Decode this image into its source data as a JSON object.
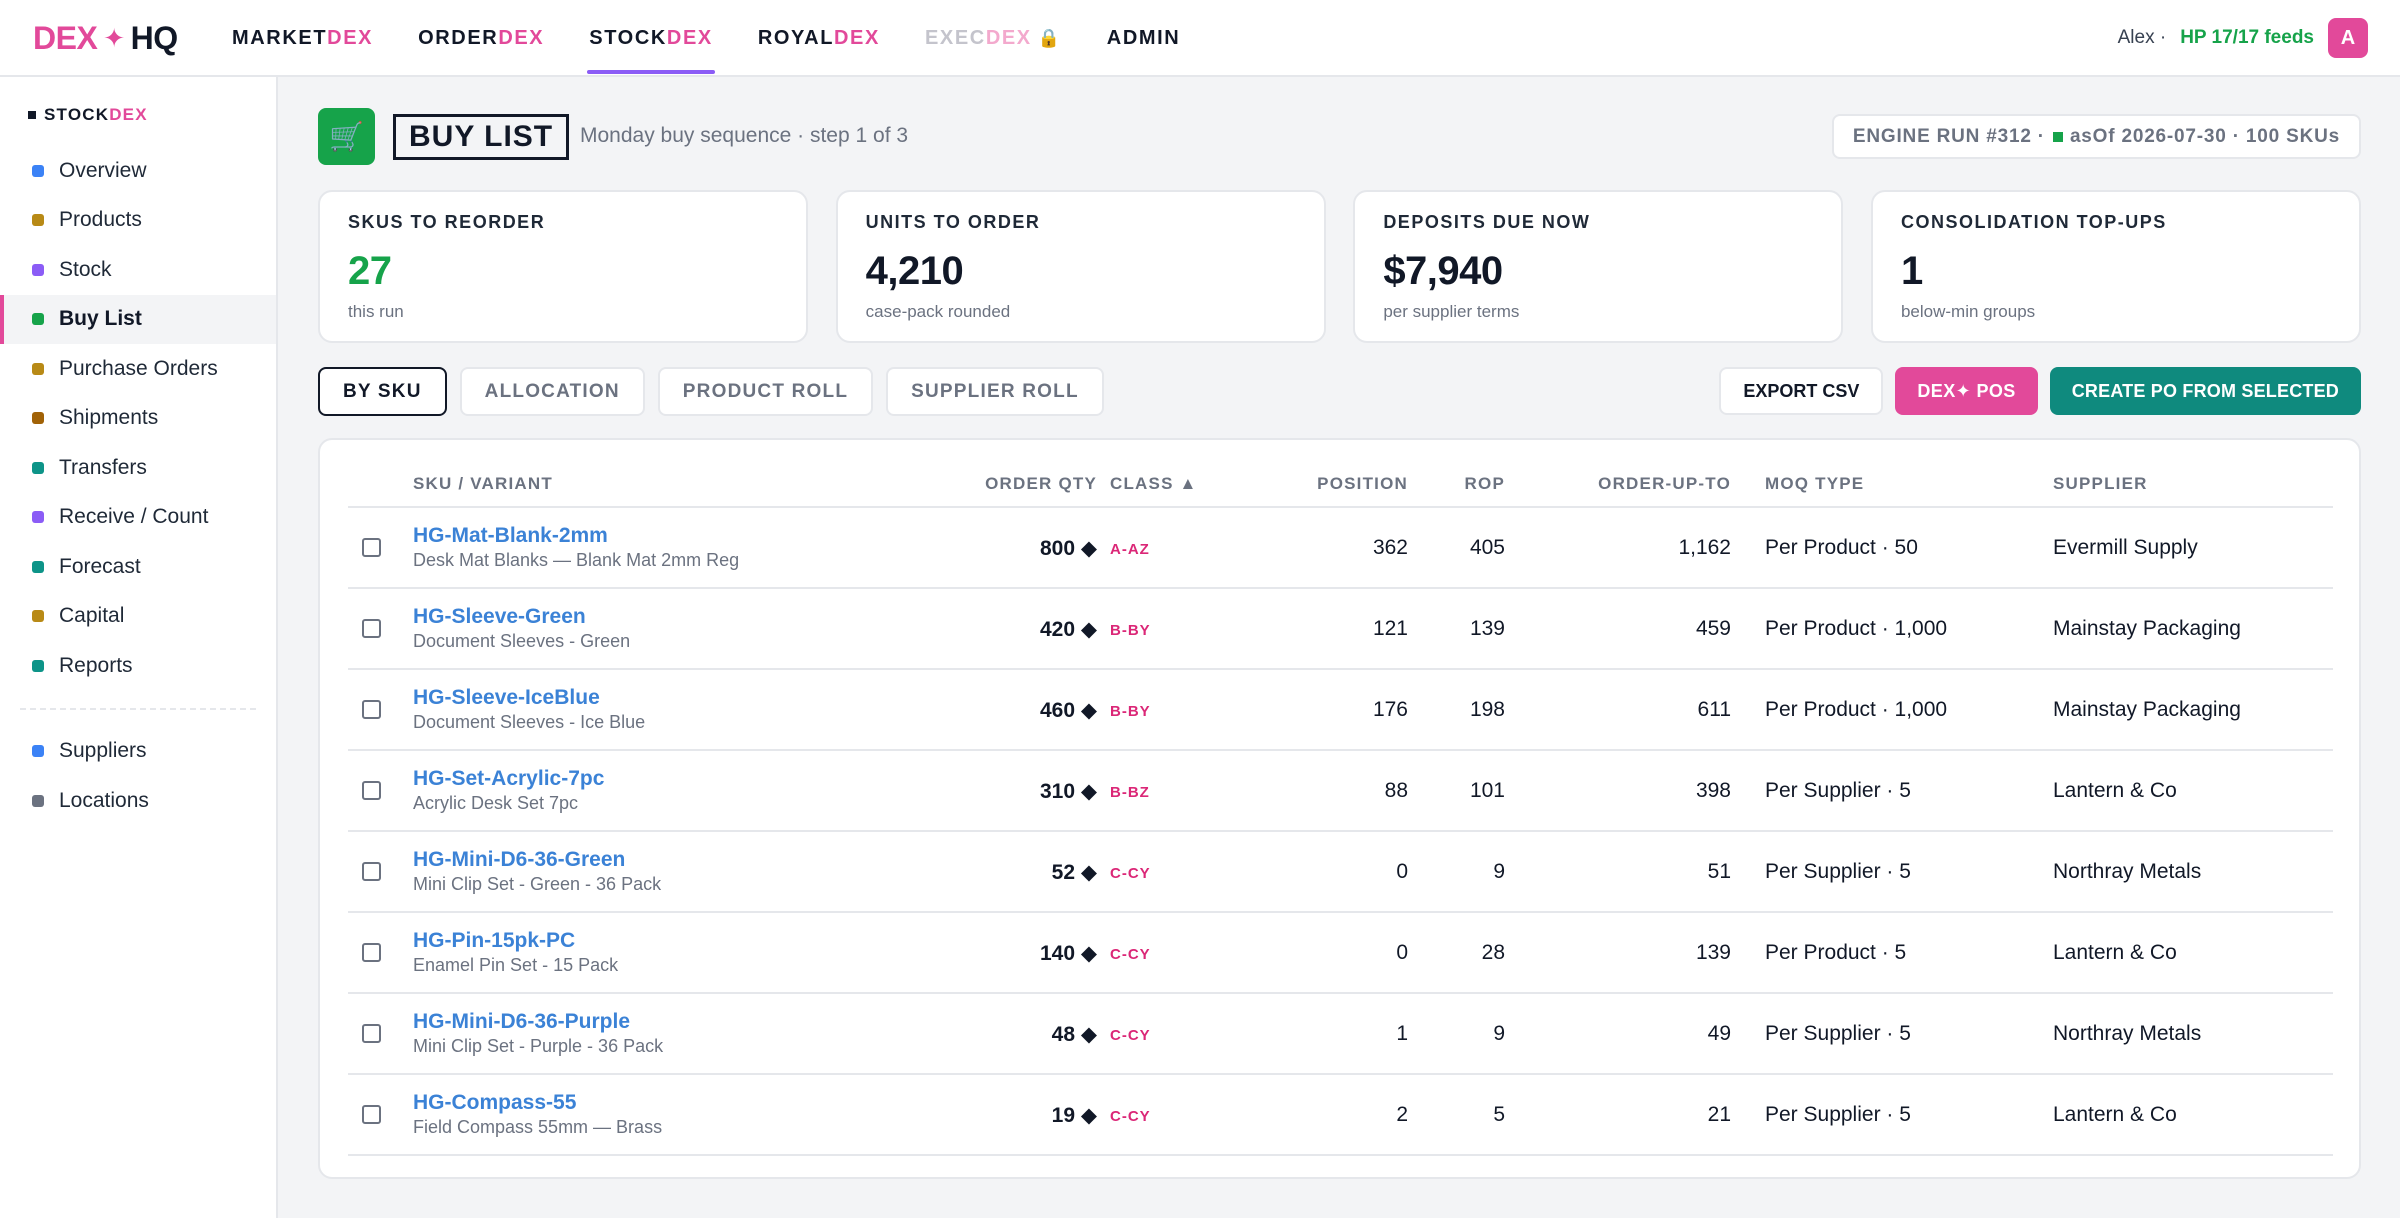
{
  "brand": {
    "part1": "DEX",
    "star": "✦",
    "part2": "HQ"
  },
  "topnav": [
    {
      "base": "MARKET",
      "accent": "DEX",
      "active": false,
      "locked": false
    },
    {
      "base": "ORDER",
      "accent": "DEX",
      "active": false,
      "locked": false
    },
    {
      "base": "STOCK",
      "accent": "DEX",
      "active": true,
      "locked": false
    },
    {
      "base": "ROYAL",
      "accent": "DEX",
      "active": false,
      "locked": false
    },
    {
      "base": "EXEC",
      "accent": "DEX",
      "active": false,
      "locked": true,
      "lock_icon": "🔒"
    },
    {
      "base": "ADMIN",
      "accent": "",
      "active": false,
      "locked": false
    }
  ],
  "user": {
    "name": "Alex ·",
    "feeds": "HP 17/17 feeds",
    "avatar": "A"
  },
  "sidebar": {
    "title_base": "STOCK",
    "title_accent": "DEX",
    "items": [
      {
        "label": "Overview",
        "color": "#3b82f6",
        "active": false
      },
      {
        "label": "Products",
        "color": "#b88a16",
        "active": false
      },
      {
        "label": "Stock",
        "color": "#8b5cf6",
        "active": false
      },
      {
        "label": "Buy List",
        "color": "#16a34a",
        "active": true
      },
      {
        "label": "Purchase Orders",
        "color": "#b88a16",
        "active": false
      },
      {
        "label": "Shipments",
        "color": "#a16207",
        "active": false
      },
      {
        "label": "Transfers",
        "color": "#0d9488",
        "active": false
      },
      {
        "label": "Receive / Count",
        "color": "#8b5cf6",
        "active": false
      },
      {
        "label": "Forecast",
        "color": "#0d9488",
        "active": false
      },
      {
        "label": "Capital",
        "color": "#b88a16",
        "active": false
      },
      {
        "label": "Reports",
        "color": "#0d9488",
        "active": false
      }
    ],
    "secondary": [
      {
        "label": "Suppliers",
        "color": "#3b82f6",
        "active": false
      },
      {
        "label": "Locations",
        "color": "#6b7280",
        "active": false
      }
    ]
  },
  "header": {
    "icon": "🛒",
    "title": "BUY LIST",
    "subtitle": "Monday buy sequence · step 1 of 3",
    "engine_run": "ENGINE RUN #312 ·",
    "engine_asof": "asOf 2026-07-30 · 100 SKUs"
  },
  "kpis": [
    {
      "label": "SKUS TO REORDER",
      "value": "27",
      "note": "this run",
      "green": true
    },
    {
      "label": "UNITS TO ORDER",
      "value": "4,210",
      "note": "case-pack rounded",
      "green": false
    },
    {
      "label": "DEPOSITS DUE NOW",
      "value": "$7,940",
      "note": "per supplier terms",
      "green": false
    },
    {
      "label": "CONSOLIDATION TOP-UPS",
      "value": "1",
      "note": "below-min groups",
      "green": false
    }
  ],
  "tabs": [
    {
      "label": "BY SKU",
      "active": true
    },
    {
      "label": "ALLOCATION",
      "active": false
    },
    {
      "label": "PRODUCT ROLL",
      "active": false
    },
    {
      "label": "SUPPLIER ROLL",
      "active": false
    }
  ],
  "actions": {
    "export": "EXPORT CSV",
    "pos": "DEX✦ POS",
    "create": "CREATE PO FROM SELECTED"
  },
  "table": {
    "columns": {
      "sku": "SKU / VARIANT",
      "order_qty": "ORDER QTY",
      "class": "CLASS ▲",
      "position": "POSITION",
      "rop": "ROP",
      "order_up_to": "ORDER-UP-TO",
      "moq_type": "MOQ TYPE",
      "supplier": "SUPPLIER"
    },
    "rows": [
      {
        "sku": "HG-Mat-Blank-2mm",
        "desc": "Desk Mat Blanks — Blank Mat 2mm Reg",
        "qty": "800 ◆",
        "class": "A-AZ",
        "position": "362",
        "rop": "405",
        "out": "1,162",
        "moq": "Per Product · 50",
        "supplier": "Evermill Supply"
      },
      {
        "sku": "HG-Sleeve-Green",
        "desc": "Document Sleeves - Green",
        "qty": "420 ◆",
        "class": "B-BY",
        "position": "121",
        "rop": "139",
        "out": "459",
        "moq": "Per Product · 1,000",
        "supplier": "Mainstay Packaging"
      },
      {
        "sku": "HG-Sleeve-IceBlue",
        "desc": "Document Sleeves - Ice Blue",
        "qty": "460 ◆",
        "class": "B-BY",
        "position": "176",
        "rop": "198",
        "out": "611",
        "moq": "Per Product · 1,000",
        "supplier": "Mainstay Packaging"
      },
      {
        "sku": "HG-Set-Acrylic-7pc",
        "desc": "Acrylic Desk Set 7pc",
        "qty": "310 ◆",
        "class": "B-BZ",
        "position": "88",
        "rop": "101",
        "out": "398",
        "moq": "Per Supplier · 5",
        "supplier": "Lantern & Co"
      },
      {
        "sku": "HG-Mini-D6-36-Green",
        "desc": "Mini Clip Set - Green - 36 Pack",
        "qty": "52 ◆",
        "class": "C-CY",
        "position": "0",
        "rop": "9",
        "out": "51",
        "moq": "Per Supplier · 5",
        "supplier": "Northray Metals"
      },
      {
        "sku": "HG-Pin-15pk-PC",
        "desc": "Enamel Pin Set - 15 Pack",
        "qty": "140 ◆",
        "class": "C-CY",
        "position": "0",
        "rop": "28",
        "out": "139",
        "moq": "Per Product · 5",
        "supplier": "Lantern & Co"
      },
      {
        "sku": "HG-Mini-D6-36-Purple",
        "desc": "Mini Clip Set - Purple - 36 Pack",
        "qty": "48 ◆",
        "class": "C-CY",
        "position": "1",
        "rop": "9",
        "out": "49",
        "moq": "Per Supplier · 5",
        "supplier": "Northray Metals"
      },
      {
        "sku": "HG-Compass-55",
        "desc": "Field Compass 55mm — Brass",
        "qty": "19 ◆",
        "class": "C-CY",
        "position": "2",
        "rop": "5",
        "out": "21",
        "moq": "Per Supplier · 5",
        "supplier": "Lantern & Co"
      }
    ]
  }
}
